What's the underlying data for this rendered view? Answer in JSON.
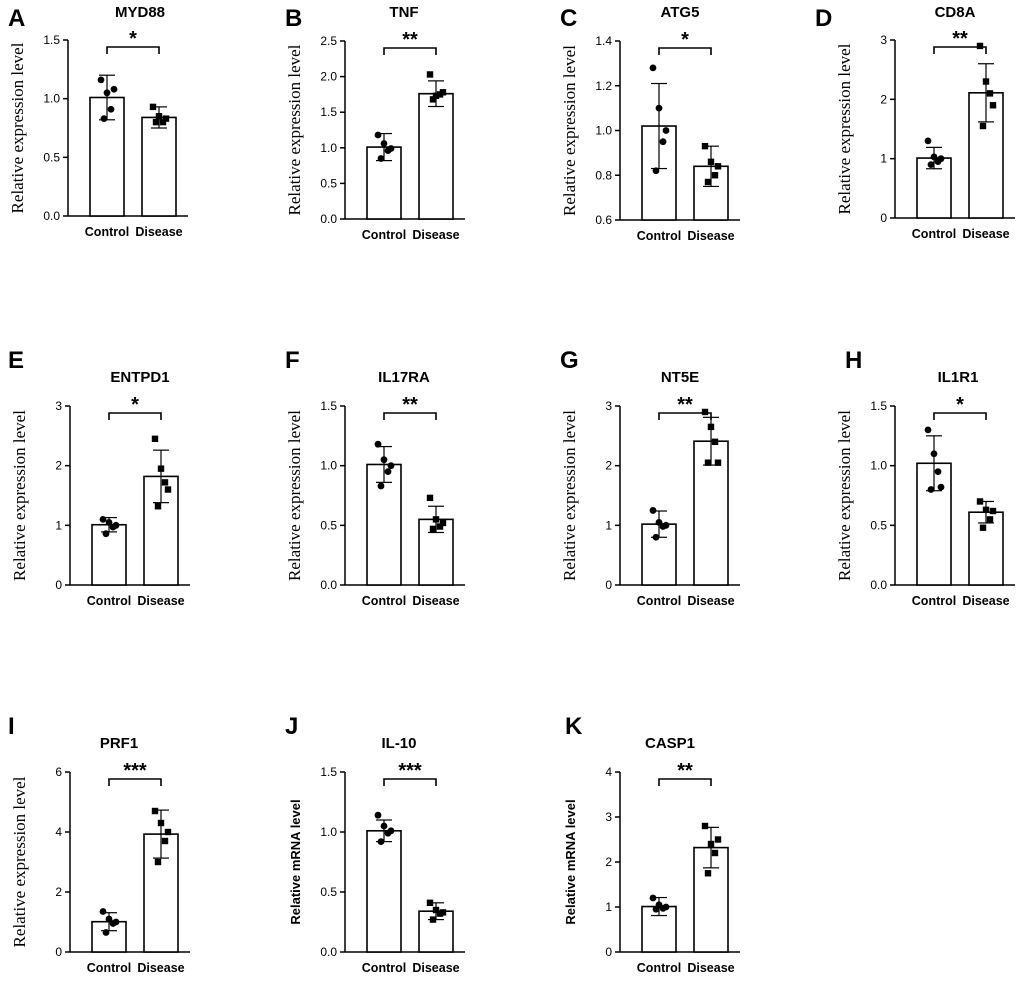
{
  "figure": {
    "background": "#ffffff",
    "ink": "#000000"
  },
  "chart_data": [
    {
      "type": "bar",
      "panel": "A",
      "title": "MYD88",
      "ylabel": "Relative expression level",
      "ylim": [
        0,
        1.5
      ],
      "yticks": [
        "0.0",
        "0.5",
        "1.0",
        "1.5"
      ],
      "categories": [
        "Control",
        "Disease"
      ],
      "values": [
        1.01,
        0.84
      ],
      "errors": [
        0.19,
        0.09
      ],
      "points": [
        [
          1.16,
          1.05,
          0.91,
          0.83,
          1.08
        ],
        [
          0.93,
          0.85,
          0.8,
          0.8,
          0.83
        ]
      ],
      "significance": "*"
    },
    {
      "type": "bar",
      "panel": "B",
      "title": "TNF",
      "ylabel": "Relative expression level",
      "ylim": [
        0,
        2.5
      ],
      "yticks": [
        "0.0",
        "0.5",
        "1.0",
        "1.5",
        "2.0",
        "2.5"
      ],
      "categories": [
        "Control",
        "Disease"
      ],
      "values": [
        1.01,
        1.76
      ],
      "errors": [
        0.19,
        0.18
      ],
      "points": [
        [
          1.18,
          1.06,
          0.96,
          0.85,
          0.99
        ],
        [
          2.03,
          1.73,
          1.75,
          1.68,
          1.78
        ]
      ],
      "significance": "**"
    },
    {
      "type": "bar",
      "panel": "C",
      "title": "ATG5",
      "ylabel": "Relative expression level",
      "ylim": [
        0.6,
        1.4
      ],
      "yticks": [
        "0.6",
        "0.8",
        "1.0",
        "1.2",
        "1.4"
      ],
      "categories": [
        "Control",
        "Disease"
      ],
      "values": [
        1.02,
        0.84
      ],
      "errors": [
        0.19,
        0.09
      ],
      "points": [
        [
          1.28,
          1.1,
          0.95,
          0.82,
          1.0
        ],
        [
          0.93,
          0.86,
          0.8,
          0.77,
          0.84
        ]
      ],
      "significance": "*"
    },
    {
      "type": "bar",
      "panel": "D",
      "title": "CD8A",
      "ylabel": "Relative expression level",
      "ylim": [
        0,
        3
      ],
      "yticks": [
        "0",
        "1",
        "2",
        "3"
      ],
      "categories": [
        "Control",
        "Disease"
      ],
      "values": [
        1.01,
        2.11
      ],
      "errors": [
        0.18,
        0.49
      ],
      "points": [
        [
          1.3,
          1.03,
          0.95,
          0.9,
          1.0
        ],
        [
          2.9,
          2.3,
          2.1,
          1.55,
          1.9
        ]
      ],
      "significance": "**"
    },
    {
      "type": "bar",
      "panel": "E",
      "title": "ENTPD1",
      "ylabel": "Relative expression level",
      "ylim": [
        0,
        3
      ],
      "yticks": [
        "0",
        "1",
        "2",
        "3"
      ],
      "categories": [
        "Control",
        "Disease"
      ],
      "values": [
        1.01,
        1.82
      ],
      "errors": [
        0.12,
        0.44
      ],
      "points": [
        [
          1.1,
          1.05,
          0.97,
          0.86,
          1.0
        ],
        [
          2.45,
          1.95,
          1.72,
          1.32,
          1.6
        ]
      ],
      "significance": "*"
    },
    {
      "type": "bar",
      "panel": "F",
      "title": "IL17RA",
      "ylabel": "Relative expression level",
      "ylim": [
        0,
        1.5
      ],
      "yticks": [
        "0.0",
        "0.5",
        "1.0",
        "1.5"
      ],
      "categories": [
        "Control",
        "Disease"
      ],
      "values": [
        1.01,
        0.55
      ],
      "errors": [
        0.15,
        0.11
      ],
      "points": [
        [
          1.18,
          1.05,
          0.95,
          0.83,
          1.0
        ],
        [
          0.73,
          0.55,
          0.49,
          0.47,
          0.52
        ]
      ],
      "significance": "**"
    },
    {
      "type": "bar",
      "panel": "G",
      "title": "NT5E",
      "ylabel": "Relative expression level",
      "ylim": [
        0,
        3
      ],
      "yticks": [
        "0",
        "1",
        "2",
        "3"
      ],
      "categories": [
        "Control",
        "Disease"
      ],
      "values": [
        1.02,
        2.41
      ],
      "errors": [
        0.22,
        0.4
      ],
      "points": [
        [
          1.25,
          1.05,
          0.98,
          0.8,
          1.0
        ],
        [
          2.9,
          2.65,
          2.4,
          2.05,
          2.05
        ]
      ],
      "significance": "**"
    },
    {
      "type": "bar",
      "panel": "H",
      "title": "IL1R1",
      "ylabel": "Relative expression level",
      "ylim": [
        0,
        1.5
      ],
      "yticks": [
        "0.0",
        "0.5",
        "1.0",
        "1.5"
      ],
      "categories": [
        "Control",
        "Disease"
      ],
      "values": [
        1.02,
        0.61
      ],
      "errors": [
        0.23,
        0.09
      ],
      "points": [
        [
          1.3,
          1.1,
          0.95,
          0.8,
          0.82
        ],
        [
          0.7,
          0.63,
          0.55,
          0.48,
          0.62
        ]
      ],
      "significance": "*"
    },
    {
      "type": "bar",
      "panel": "I",
      "title": "PRF1",
      "ylabel": "Relative expression level",
      "ylim": [
        0,
        6
      ],
      "yticks": [
        "0",
        "2",
        "4",
        "6"
      ],
      "categories": [
        "Control",
        "Disease"
      ],
      "values": [
        1.01,
        3.93
      ],
      "errors": [
        0.3,
        0.8
      ],
      "points": [
        [
          1.35,
          1.1,
          0.95,
          0.65,
          1.0
        ],
        [
          4.7,
          4.3,
          3.7,
          3.0,
          4.0
        ]
      ],
      "significance": "***"
    },
    {
      "type": "bar",
      "panel": "J",
      "title": "IL-10",
      "ylabel": "Relative mRNA level",
      "ylim": [
        0,
        1.5
      ],
      "yticks": [
        "0.0",
        "0.5",
        "1.0",
        "1.5"
      ],
      "categories": [
        "Control",
        "Disease"
      ],
      "values": [
        1.01,
        0.34
      ],
      "errors": [
        0.09,
        0.07
      ],
      "points": [
        [
          1.14,
          1.05,
          0.99,
          0.92,
          1.01
        ],
        [
          0.41,
          0.35,
          0.32,
          0.27,
          0.33
        ]
      ],
      "significance": "***"
    },
    {
      "type": "bar",
      "panel": "K",
      "title": "CASP1",
      "ylabel": "Relative mRNA level",
      "ylim": [
        0,
        4
      ],
      "yticks": [
        "0",
        "1",
        "2",
        "3",
        "4"
      ],
      "categories": [
        "Control",
        "Disease"
      ],
      "values": [
        1.01,
        2.32
      ],
      "errors": [
        0.2,
        0.45
      ],
      "points": [
        [
          1.2,
          1.05,
          0.97,
          0.95,
          1.0
        ],
        [
          2.8,
          2.4,
          2.2,
          1.75,
          2.5
        ]
      ],
      "significance": "**"
    }
  ]
}
